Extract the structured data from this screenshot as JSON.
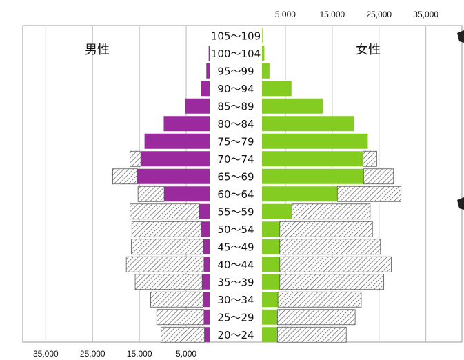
{
  "chart_data": {
    "type": "bar",
    "title": "",
    "male_label": "男性",
    "female_label": "女性",
    "categories": [
      "105～109",
      "100～104",
      "95～99",
      "90～94",
      "85～89",
      "80～84",
      "75～79",
      "70～74",
      "65～69",
      "60～64",
      "55～59",
      "50～54",
      "45～49",
      "40～44",
      "35～39",
      "30～34",
      "25～29",
      "20～24"
    ],
    "male_ticks": [
      "35,000",
      "25,000",
      "15,000",
      "5,000"
    ],
    "female_ticks": [
      "5,000",
      "15,000",
      "25,000",
      "35,000"
    ],
    "xlim": [
      0,
      35000
    ],
    "grid": true,
    "series": [
      {
        "name": "男性",
        "values": [
          0,
          200,
          700,
          1900,
          5200,
          9800,
          13900,
          14700,
          15400,
          9700,
          2200,
          1800,
          1300,
          1200,
          1600,
          1400,
          1200,
          1100
        ]
      },
      {
        "name": "男性",
        "values": [
          0,
          0,
          0,
          0,
          0,
          0,
          0,
          2300,
          5300,
          5600,
          14800,
          14800,
          15400,
          16600,
          14300,
          11200,
          10100,
          9300
        ]
      },
      {
        "name": "女性",
        "values": [
          100,
          500,
          1600,
          6300,
          13000,
          19600,
          22600,
          21600,
          21700,
          16100,
          6400,
          3800,
          3800,
          3800,
          3800,
          3400,
          3300,
          3300
        ]
      },
      {
        "name": "女性",
        "values": [
          0,
          0,
          0,
          0,
          0,
          0,
          0,
          2900,
          6400,
          13600,
          16700,
          19800,
          21500,
          23800,
          22200,
          17800,
          16600,
          14700
        ]
      }
    ]
  }
}
